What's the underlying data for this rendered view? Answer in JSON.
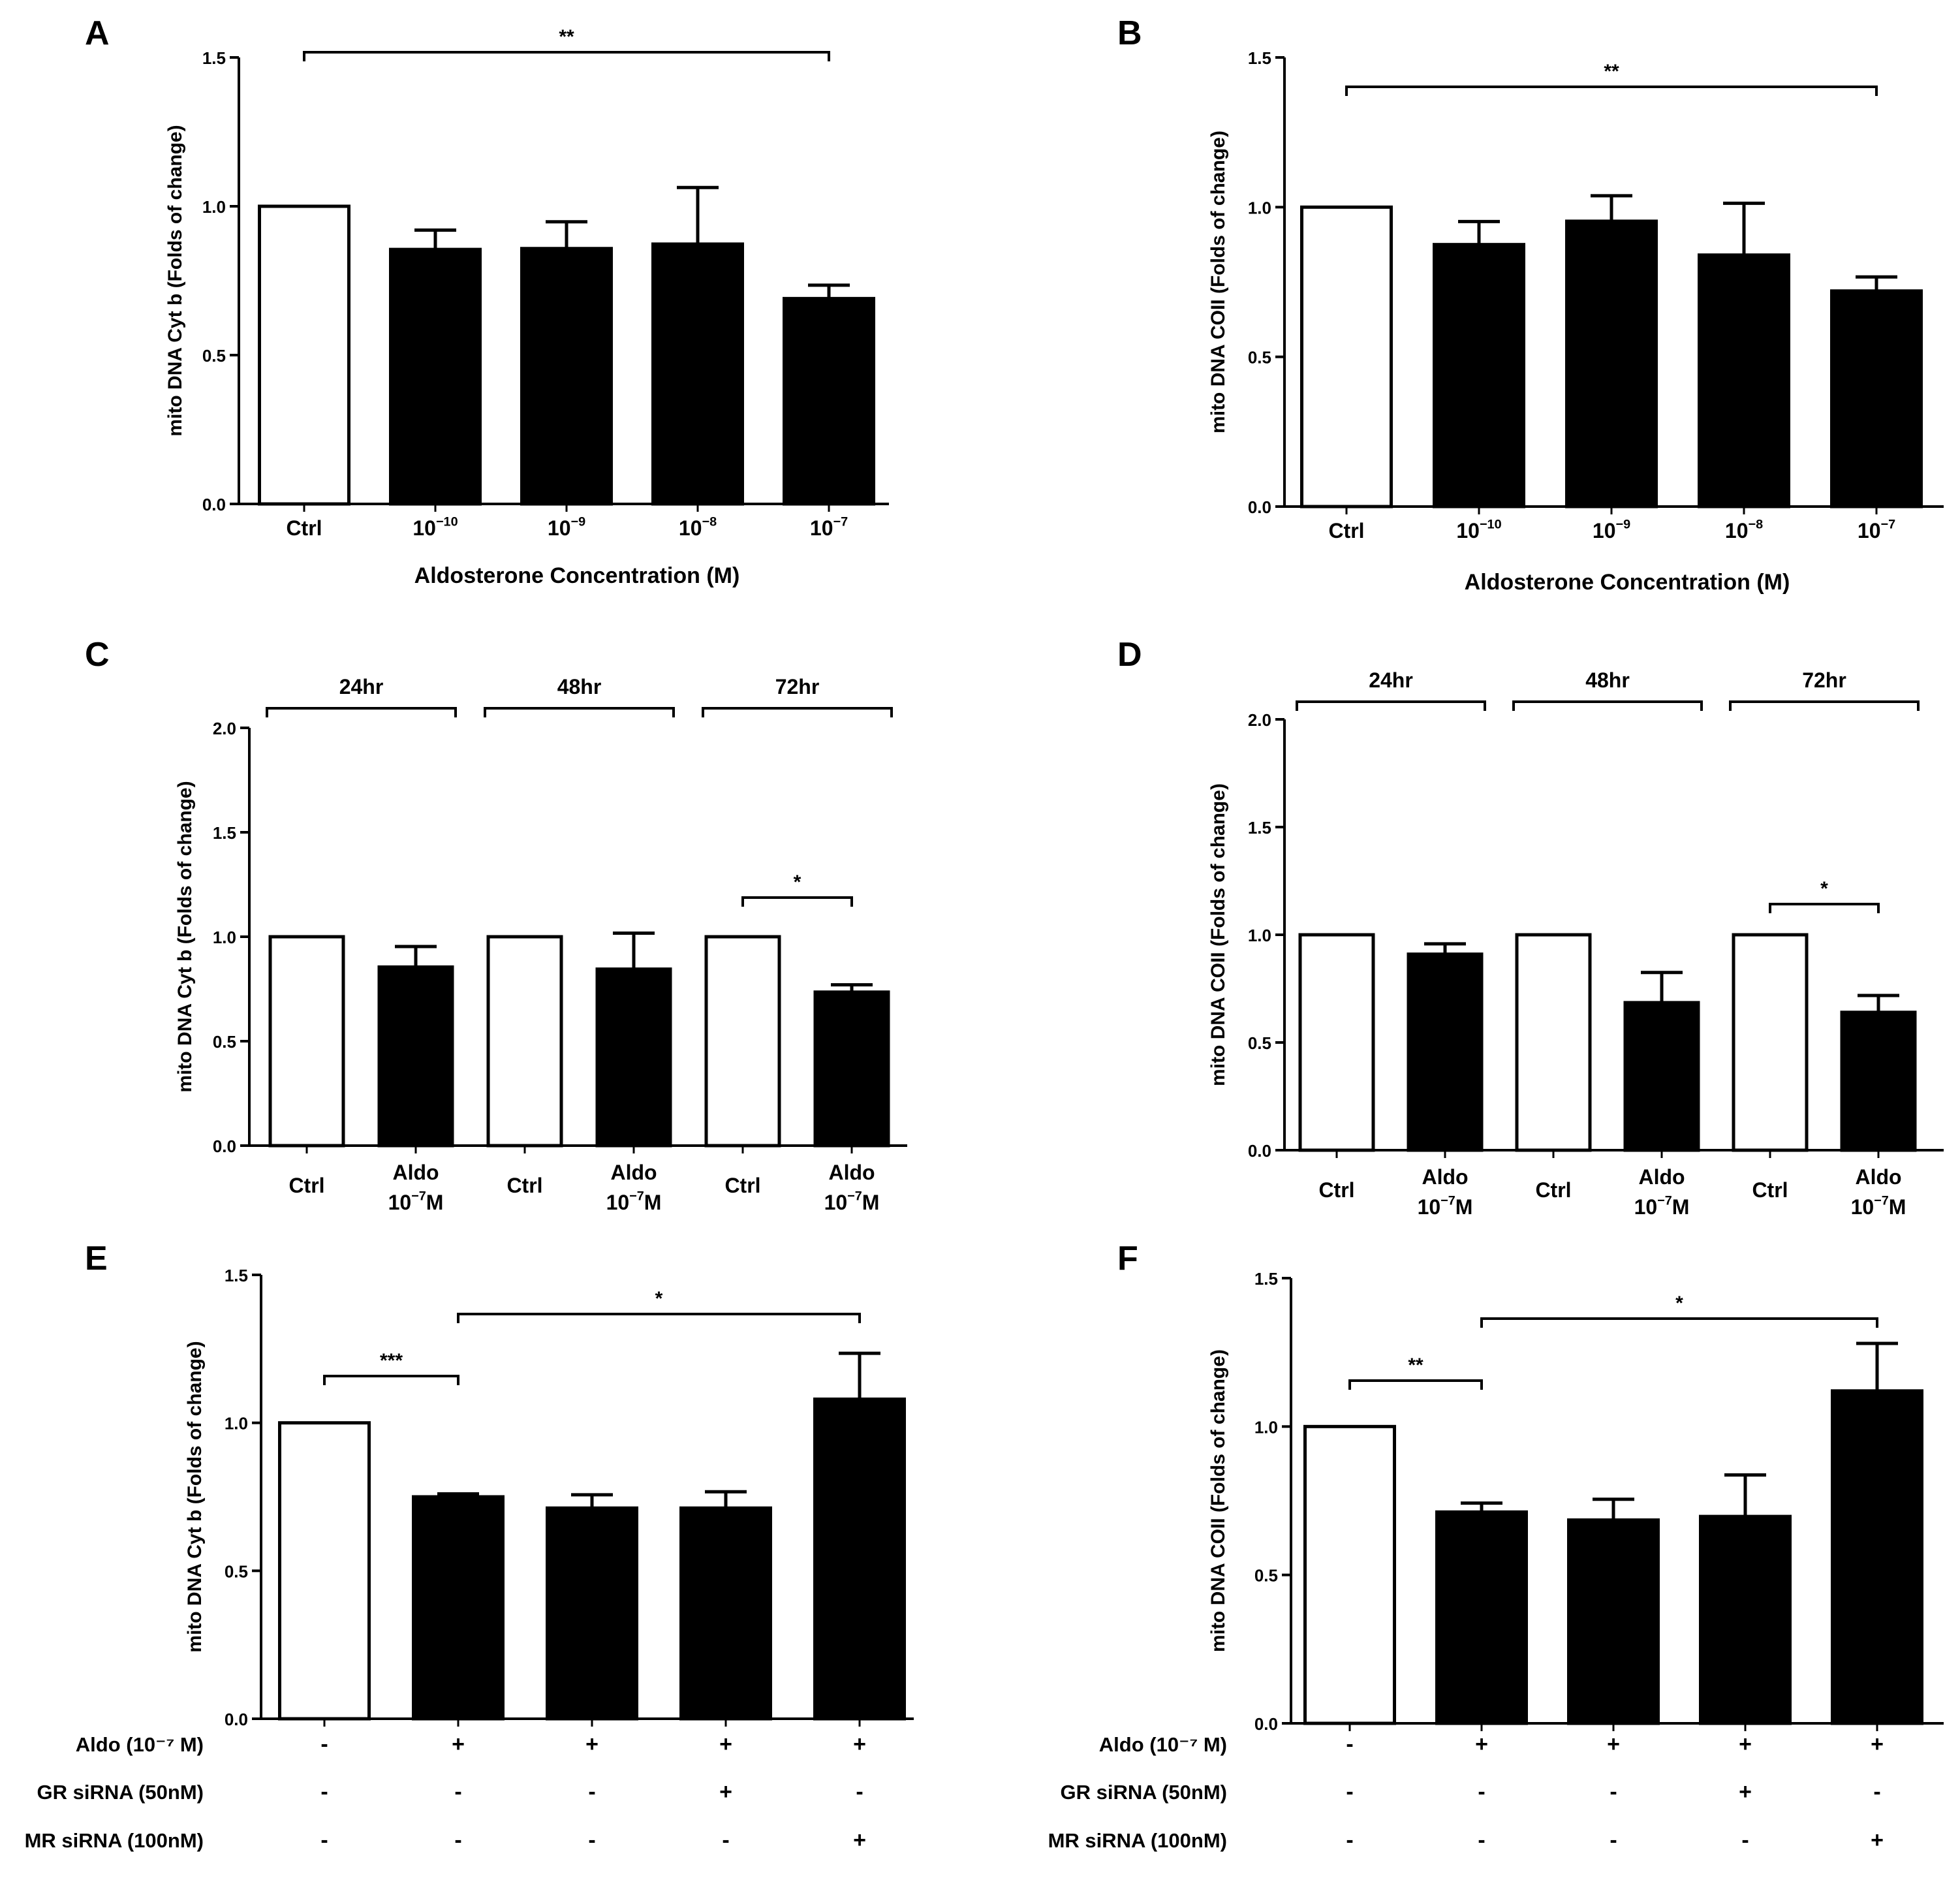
{
  "chart_data": [
    {
      "panel": "A",
      "type": "bar",
      "ylabel": "mito DNA Cyt b (Folds of change)",
      "xlabel": "Aldosterone Concentration (M)",
      "ylim": [
        0,
        1.5
      ],
      "yticks": [
        "0.0",
        "0.5",
        "1.0",
        "1.5"
      ],
      "categories": [
        {
          "text": "Ctrl"
        },
        {
          "base": "10",
          "exp": "−10"
        },
        {
          "base": "10",
          "exp": "−9"
        },
        {
          "base": "10",
          "exp": "−8"
        },
        {
          "base": "10",
          "exp": "−7"
        }
      ],
      "values": [
        1.0,
        0.855,
        0.858,
        0.873,
        0.69
      ],
      "errors": [
        0,
        0.065,
        0.09,
        0.19,
        0.045
      ],
      "fills": [
        "white",
        "black",
        "black",
        "black",
        "black"
      ],
      "significance": [
        {
          "from": 0,
          "to": 4,
          "label": "**"
        }
      ]
    },
    {
      "panel": "B",
      "type": "bar",
      "ylabel": "mito DNA COII (Folds of change)",
      "xlabel": "Aldosterone Concentration (M)",
      "ylim": [
        0,
        1.5
      ],
      "yticks": [
        "0.0",
        "0.5",
        "1.0",
        "1.5"
      ],
      "categories": [
        {
          "text": "Ctrl"
        },
        {
          "base": "10",
          "exp": "−10"
        },
        {
          "base": "10",
          "exp": "−9"
        },
        {
          "base": "10",
          "exp": "−8"
        },
        {
          "base": "10",
          "exp": "−7"
        }
      ],
      "values": [
        1.0,
        0.875,
        0.953,
        0.84,
        0.72
      ],
      "errors": [
        0,
        0.077,
        0.085,
        0.173,
        0.047
      ],
      "fills": [
        "white",
        "black",
        "black",
        "black",
        "black"
      ],
      "significance": [
        {
          "from": 0,
          "to": 4,
          "label": "**"
        }
      ]
    },
    {
      "panel": "C",
      "type": "bar",
      "ylabel": "mito DNA Cyt b (Folds of change)",
      "ylim": [
        0,
        2.0
      ],
      "yticks": [
        "0.0",
        "0.5",
        "1.0",
        "1.5",
        "2.0"
      ],
      "categories": [
        {
          "text": "Ctrl"
        },
        {
          "line1": "Aldo",
          "base": "10",
          "exp": "−7",
          "suffix": "M"
        },
        {
          "text": "Ctrl"
        },
        {
          "line1": "Aldo",
          "base": "10",
          "exp": "−7",
          "suffix": "M"
        },
        {
          "text": "Ctrl"
        },
        {
          "line1": "Aldo",
          "base": "10",
          "exp": "−7",
          "suffix": "M"
        }
      ],
      "values": [
        1.0,
        0.855,
        1.0,
        0.845,
        1.0,
        0.735
      ],
      "errors": [
        0,
        0.098,
        0,
        0.172,
        0,
        0.035
      ],
      "fills": [
        "white",
        "black",
        "white",
        "black",
        "white",
        "black"
      ],
      "groups": [
        {
          "label": "24hr",
          "from": 0,
          "to": 1
        },
        {
          "label": "48hr",
          "from": 2,
          "to": 3
        },
        {
          "label": "72hr",
          "from": 4,
          "to": 5
        }
      ],
      "significance": [
        {
          "from": 4,
          "to": 5,
          "label": "*"
        }
      ]
    },
    {
      "panel": "D",
      "type": "bar",
      "ylabel": "mito DNA COII (Folds of change)",
      "ylim": [
        0,
        2.0
      ],
      "yticks": [
        "0.0",
        "0.5",
        "1.0",
        "1.5",
        "2.0"
      ],
      "categories": [
        {
          "text": "Ctrl"
        },
        {
          "line1": "Aldo",
          "base": "10",
          "exp": "−7",
          "suffix": "M"
        },
        {
          "text": "Ctrl"
        },
        {
          "line1": "Aldo",
          "base": "10",
          "exp": "−7",
          "suffix": "M"
        },
        {
          "text": "Ctrl"
        },
        {
          "line1": "Aldo",
          "base": "10",
          "exp": "−7",
          "suffix": "M"
        }
      ],
      "values": [
        1.0,
        0.91,
        1.0,
        0.685,
        1.0,
        0.64
      ],
      "errors": [
        0,
        0.048,
        0,
        0.14,
        0,
        0.078
      ],
      "fills": [
        "white",
        "black",
        "white",
        "black",
        "white",
        "black"
      ],
      "groups": [
        {
          "label": "24hr",
          "from": 0,
          "to": 1
        },
        {
          "label": "48hr",
          "from": 2,
          "to": 3
        },
        {
          "label": "72hr",
          "from": 4,
          "to": 5
        }
      ],
      "significance": [
        {
          "from": 4,
          "to": 5,
          "label": "*"
        }
      ]
    },
    {
      "panel": "E",
      "type": "bar",
      "ylabel": "mito DNA Cyt b (Folds of change)",
      "ylim": [
        0,
        1.5
      ],
      "yticks": [
        "0.0",
        "0.5",
        "1.0",
        "1.5"
      ],
      "values": [
        1.0,
        0.75,
        0.712,
        0.712,
        1.08
      ],
      "errors": [
        0,
        0.01,
        0.045,
        0.055,
        0.155
      ],
      "fills": [
        "white",
        "black",
        "black",
        "black",
        "black"
      ],
      "significance": [
        {
          "from": 0,
          "to": 1,
          "label": "***"
        },
        {
          "from": 1,
          "to": 4,
          "label": "*"
        }
      ],
      "conditions": [
        {
          "label": "Aldo (10⁻⁷ M)",
          "signs": [
            "-",
            "+",
            "+",
            "+",
            "+"
          ]
        },
        {
          "label": "GR siRNA (50nM)",
          "signs": [
            "-",
            "-",
            "-",
            "+",
            "-"
          ]
        },
        {
          "label": "MR siRNA  (100nM)",
          "signs": [
            "-",
            "-",
            "-",
            "-",
            "+"
          ]
        }
      ]
    },
    {
      "panel": "F",
      "type": "bar",
      "ylabel": "mito DNA COII (Folds of change)",
      "ylim": [
        0,
        1.5
      ],
      "yticks": [
        "0.0",
        "0.5",
        "1.0",
        "1.5"
      ],
      "values": [
        1.0,
        0.712,
        0.685,
        0.697,
        1.12
      ],
      "errors": [
        0,
        0.03,
        0.07,
        0.14,
        0.16
      ],
      "fills": [
        "white",
        "black",
        "black",
        "black",
        "black"
      ],
      "significance": [
        {
          "from": 0,
          "to": 1,
          "label": "**"
        },
        {
          "from": 1,
          "to": 4,
          "label": "*"
        }
      ],
      "conditions": [
        {
          "label": "Aldo (10⁻⁷ M)",
          "signs": [
            "-",
            "+",
            "+",
            "+",
            "+"
          ]
        },
        {
          "label": "GR siRNA (50nM)",
          "signs": [
            "-",
            "-",
            "-",
            "+",
            "-"
          ]
        },
        {
          "label": "MR siRNA  (100nM)",
          "signs": [
            "-",
            "-",
            "-",
            "-",
            "+"
          ]
        }
      ]
    }
  ]
}
